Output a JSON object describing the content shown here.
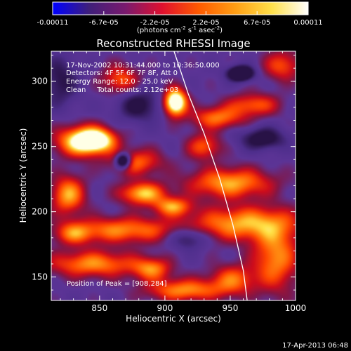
{
  "chart_data": {
    "type": "heatmap",
    "title": "Reconstructed RHESSI Image",
    "xlabel": "Heliocentric X (arcsec)",
    "ylabel": "Heliocentric Y (arcsec)",
    "xlim": [
      813,
      1000
    ],
    "ylim": [
      132,
      323
    ],
    "x_ticks": [
      "850",
      "900",
      "950",
      "1000"
    ],
    "y_ticks": [
      "150",
      "200",
      "250",
      "300"
    ],
    "x_tick_values": [
      850,
      900,
      950,
      1000
    ],
    "y_tick_values": [
      150,
      200,
      250,
      300
    ],
    "colorbar": {
      "ticks": [
        "-0.00011",
        "-6.7e-05",
        "-2.2e-05",
        "2.2e-05",
        "6.7e-05",
        "0.00011"
      ],
      "units_main": "(photons cm",
      "units_exp1": "-2",
      "units_mid": " s",
      "units_exp2": "-1",
      "units_end": " asec",
      "units_exp3": "-2",
      "units_close": ")",
      "range": [
        -0.00011,
        0.00011
      ],
      "colormap": [
        "#0000ff",
        "#3f1f7a",
        "#7a1a6e",
        "#e0102f",
        "#ff5a00",
        "#ff9e14",
        "#ffe04a",
        "#ffffff"
      ]
    },
    "annotation_lines": [
      "17-Nov-2002 10:31:44.000 to 10:36:50.000",
      "Detectors: 4F 5F 6F 7F 8F, Att 0",
      "Energy Range: 12.0 - 25.0 keV",
      "Clean     Total counts: 2.12e+03"
    ],
    "peak_label": "Position of Peak = [908,284]",
    "peak": {
      "x": 908,
      "y": 284
    },
    "limb_curve": {
      "x": [
        907,
        918,
        930,
        942,
        952,
        960,
        963
      ],
      "y": [
        323,
        290,
        260,
        225,
        190,
        155,
        132
      ]
    },
    "blobs": [
      {
        "x": 908,
        "y": 284,
        "sx": 6,
        "sy": 7,
        "a": 1.0
      },
      {
        "x": 837,
        "y": 254,
        "sx": 14,
        "sy": 8,
        "a": 0.72
      },
      {
        "x": 848,
        "y": 255,
        "sx": 10,
        "sy": 6,
        "a": 0.55
      },
      {
        "x": 826,
        "y": 213,
        "sx": 9,
        "sy": 10,
        "a": 0.55
      },
      {
        "x": 883,
        "y": 214,
        "sx": 12,
        "sy": 6,
        "a": 0.6
      },
      {
        "x": 906,
        "y": 204,
        "sx": 10,
        "sy": 5,
        "a": 0.5
      },
      {
        "x": 868,
        "y": 186,
        "sx": 28,
        "sy": 7,
        "a": 0.48
      },
      {
        "x": 845,
        "y": 160,
        "sx": 24,
        "sy": 7,
        "a": 0.5
      },
      {
        "x": 890,
        "y": 156,
        "sx": 10,
        "sy": 6,
        "a": 0.45
      },
      {
        "x": 915,
        "y": 140,
        "sx": 20,
        "sy": 6,
        "a": 0.5
      },
      {
        "x": 950,
        "y": 222,
        "sx": 22,
        "sy": 8,
        "a": 0.55
      },
      {
        "x": 960,
        "y": 191,
        "sx": 28,
        "sy": 9,
        "a": 0.55
      },
      {
        "x": 985,
        "y": 165,
        "sx": 12,
        "sy": 18,
        "a": 0.5
      },
      {
        "x": 940,
        "y": 272,
        "sx": 14,
        "sy": 6,
        "a": 0.45
      },
      {
        "x": 968,
        "y": 282,
        "sx": 14,
        "sy": 6,
        "a": 0.4
      },
      {
        "x": 990,
        "y": 312,
        "sx": 10,
        "sy": 8,
        "a": 0.38
      },
      {
        "x": 866,
        "y": 301,
        "sx": 10,
        "sy": 8,
        "a": 0.4
      },
      {
        "x": 878,
        "y": 238,
        "sx": 14,
        "sy": 7,
        "a": 0.42
      },
      {
        "x": 930,
        "y": 250,
        "sx": 9,
        "sy": 7,
        "a": 0.4
      },
      {
        "x": 952,
        "y": 148,
        "sx": 12,
        "sy": 8,
        "a": 0.42
      },
      {
        "x": 830,
        "y": 183,
        "sx": 10,
        "sy": 6,
        "a": 0.35
      },
      {
        "x": 868,
        "y": 239,
        "sx": 4,
        "sy": 4,
        "a": -0.8
      },
      {
        "x": 958,
        "y": 306,
        "sx": 7,
        "sy": 4,
        "a": -0.7
      },
      {
        "x": 975,
        "y": 256,
        "sx": 12,
        "sy": 6,
        "a": -0.4
      },
      {
        "x": 880,
        "y": 282,
        "sx": 12,
        "sy": 9,
        "a": -0.35
      },
      {
        "x": 820,
        "y": 300,
        "sx": 10,
        "sy": 14,
        "a": -0.3
      },
      {
        "x": 918,
        "y": 180,
        "sx": 10,
        "sy": 6,
        "a": -0.35
      }
    ]
  },
  "footer": {
    "date": "17-Apr-2013 06:48"
  }
}
